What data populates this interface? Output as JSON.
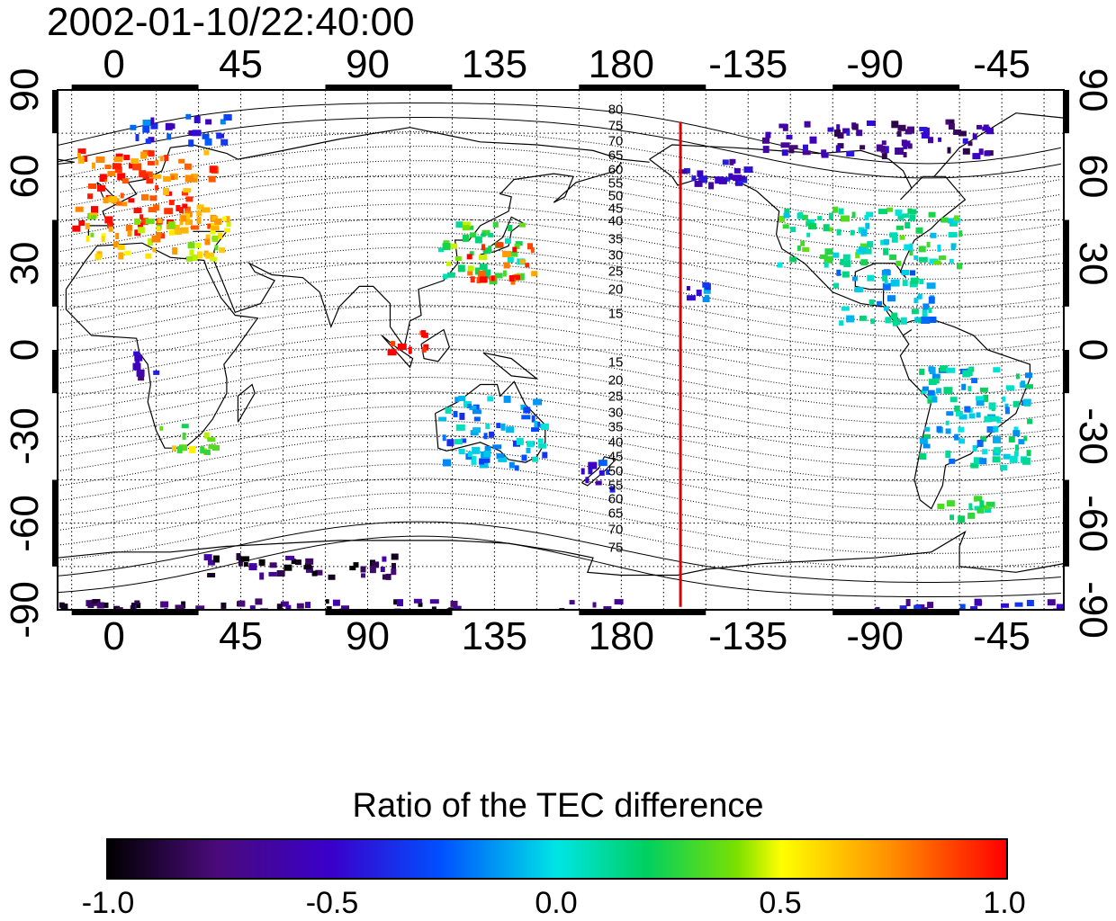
{
  "title": "2002-01-10/22:40:00",
  "lon_ticks": [
    {
      "value": 0,
      "label": "0"
    },
    {
      "value": 45,
      "label": "45"
    },
    {
      "value": 90,
      "label": "90"
    },
    {
      "value": 135,
      "label": "135"
    },
    {
      "value": 180,
      "label": "180"
    },
    {
      "value": 225,
      "label": "-135"
    },
    {
      "value": 270,
      "label": "-90"
    },
    {
      "value": 315,
      "label": "-45"
    }
  ],
  "lat_ticks": [
    {
      "value": 90,
      "label": "90"
    },
    {
      "value": 60,
      "label": "60"
    },
    {
      "value": 30,
      "label": "30"
    },
    {
      "value": 0,
      "label": "0"
    },
    {
      "value": -30,
      "label": "-30"
    },
    {
      "value": -60,
      "label": "-60"
    },
    {
      "value": -90,
      "label": "-90"
    }
  ],
  "map_extent": {
    "lon_min": -20,
    "lon_max": 337,
    "lat_min": -90,
    "lat_max": 90
  },
  "marker_line_lon": 201,
  "marker_line_color": "#dd0000",
  "magnetic_lat_labels_north": [
    "80",
    "75",
    "70",
    "65",
    "60",
    "55",
    "50",
    "45",
    "40",
    "35",
    "30",
    "25",
    "20",
    "15"
  ],
  "magnetic_lat_labels_south": [
    "15",
    "20",
    "25",
    "30",
    "35",
    "40",
    "45",
    "50",
    "55",
    "60",
    "65",
    "70",
    "75"
  ],
  "colorbar": {
    "title": "Ratio of the TEC difference",
    "min": -1.0,
    "max": 1.0,
    "tick_labels": [
      "-1.0",
      "-0.5",
      "0.0",
      "0.5",
      "1.0"
    ],
    "colors": [
      "#000000",
      "#4a0a7a",
      "#3a00cc",
      "#0050ff",
      "#00e5e5",
      "#00d060",
      "#7ae000",
      "#ffff00",
      "#ff9000",
      "#ff0000"
    ]
  },
  "tec_regions": [
    {
      "name": "europe",
      "lon": [
        -15,
        35
      ],
      "lat": [
        40,
        70
      ],
      "ratio": 0.85
    },
    {
      "name": "europe-south",
      "lon": [
        -10,
        40
      ],
      "lat": [
        32,
        48
      ],
      "ratio": 0.55
    },
    {
      "name": "scandinavia-north",
      "lon": [
        5,
        40
      ],
      "lat": [
        72,
        82
      ],
      "ratio": -0.35
    },
    {
      "name": "east-asia",
      "lon": [
        115,
        145
      ],
      "lat": [
        25,
        45
      ],
      "ratio": 0.25
    },
    {
      "name": "japan",
      "lon": [
        125,
        150
      ],
      "lat": [
        25,
        38
      ],
      "ratio": 0.8
    },
    {
      "name": "southeast-asia",
      "lon": [
        95,
        110
      ],
      "lat": [
        0,
        8
      ],
      "ratio": 0.9
    },
    {
      "name": "north-america",
      "lon": [
        235,
        300
      ],
      "lat": [
        30,
        50
      ],
      "ratio": 0.15
    },
    {
      "name": "alaska",
      "lon": [
        200,
        225
      ],
      "lat": [
        57,
        68
      ],
      "ratio": -0.55
    },
    {
      "name": "canada-north",
      "lon": [
        230,
        310
      ],
      "lat": [
        68,
        80
      ],
      "ratio": -0.65
    },
    {
      "name": "central-america",
      "lon": [
        255,
        290
      ],
      "lat": [
        10,
        28
      ],
      "ratio": -0.05
    },
    {
      "name": "south-america",
      "lon": [
        285,
        325
      ],
      "lat": [
        -40,
        -5
      ],
      "ratio": 0.0
    },
    {
      "name": "patagonia",
      "lon": [
        290,
        310
      ],
      "lat": [
        -60,
        -50
      ],
      "ratio": 0.3
    },
    {
      "name": "africa-south",
      "lon": [
        15,
        35
      ],
      "lat": [
        -35,
        -25
      ],
      "ratio": 0.45
    },
    {
      "name": "africa-central",
      "lon": [
        5,
        15
      ],
      "lat": [
        -10,
        0
      ],
      "ratio": -0.6
    },
    {
      "name": "australia",
      "lon": [
        115,
        152
      ],
      "lat": [
        -40,
        -15
      ],
      "ratio": -0.15
    },
    {
      "name": "new-zealand",
      "lon": [
        165,
        178
      ],
      "lat": [
        -48,
        -38
      ],
      "ratio": -0.4
    },
    {
      "name": "pacific-hawaii",
      "lon": [
        200,
        210
      ],
      "lat": [
        18,
        24
      ],
      "ratio": -0.3
    },
    {
      "name": "antarctica-coast",
      "lon": [
        30,
        100
      ],
      "lat": [
        -78,
        -70
      ],
      "ratio": -0.85
    },
    {
      "name": "antarctica-south",
      "lon": [
        -20,
        180
      ],
      "lat": [
        -90,
        -86
      ],
      "ratio": -0.8
    },
    {
      "name": "antarctica-south-west",
      "lon": [
        265,
        337
      ],
      "lat": [
        -90,
        -86
      ],
      "ratio": -0.5
    }
  ]
}
